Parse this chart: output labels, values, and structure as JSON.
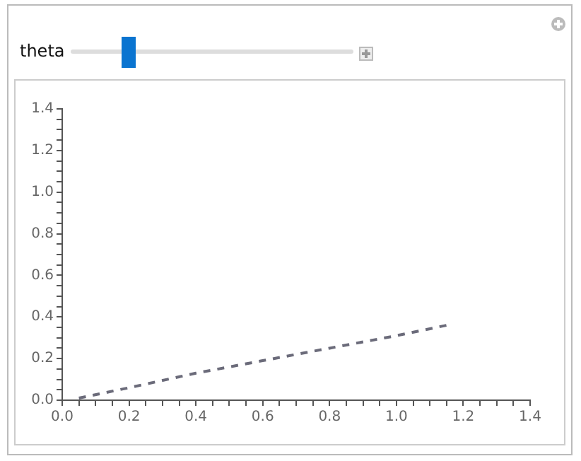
{
  "chart_data": {
    "type": "line",
    "annotations": [
      "theta"
    ],
    "x": [
      0.05,
      0.2,
      0.4,
      0.6,
      0.8,
      1.0,
      1.15
    ],
    "series": [
      {
        "color": "#6b6b7a",
        "values": [
          0.01,
          0.06,
          0.13,
          0.19,
          0.25,
          0.31,
          0.36
        ]
      }
    ],
    "xlim": [
      0,
      1.4
    ],
    "ylim": [
      0,
      1.4
    ],
    "xticks": [
      {
        "value": 0,
        "label": "0.0"
      },
      {
        "value": 0.05,
        "label": null
      },
      {
        "value": 0.1,
        "label": null
      },
      {
        "value": 0.15,
        "label": null
      },
      {
        "value": 0.2,
        "label": "0.2"
      },
      {
        "value": 0.25,
        "label": null
      },
      {
        "value": 0.3,
        "label": null
      },
      {
        "value": 0.35,
        "label": null
      },
      {
        "value": 0.4,
        "label": "0.4"
      },
      {
        "value": 0.45,
        "label": null
      },
      {
        "value": 0.5,
        "label": null
      },
      {
        "value": 0.55,
        "label": null
      },
      {
        "value": 0.6,
        "label": "0.6"
      },
      {
        "value": 0.65,
        "label": null
      },
      {
        "value": 0.7,
        "label": null
      },
      {
        "value": 0.75,
        "label": null
      },
      {
        "value": 0.8,
        "label": "0.8"
      },
      {
        "value": 0.85,
        "label": null
      },
      {
        "value": 0.9,
        "label": null
      },
      {
        "value": 0.95,
        "label": null
      },
      {
        "value": 1.0,
        "label": "1.0"
      },
      {
        "value": 1.05,
        "label": null
      },
      {
        "value": 1.1,
        "label": null
      },
      {
        "value": 1.15,
        "label": null
      },
      {
        "value": 1.2,
        "label": "1.2"
      },
      {
        "value": 1.25,
        "label": null
      },
      {
        "value": 1.3,
        "label": null
      },
      {
        "value": 1.35,
        "label": null
      },
      {
        "value": 1.4,
        "label": "1.4"
      }
    ],
    "yticks": [
      {
        "value": 0,
        "label": "0.0"
      },
      {
        "value": 0.05,
        "label": null
      },
      {
        "value": 0.1,
        "label": null
      },
      {
        "value": 0.15,
        "label": null
      },
      {
        "value": 0.2,
        "label": "0.2"
      },
      {
        "value": 0.25,
        "label": null
      },
      {
        "value": 0.3,
        "label": null
      },
      {
        "value": 0.35,
        "label": null
      },
      {
        "value": 0.4,
        "label": "0.4"
      },
      {
        "value": 0.45,
        "label": null
      },
      {
        "value": 0.5,
        "label": null
      },
      {
        "value": 0.55,
        "label": null
      },
      {
        "value": 0.6,
        "label": "0.6"
      },
      {
        "value": 0.65,
        "label": null
      },
      {
        "value": 0.7,
        "label": null
      },
      {
        "value": 0.75,
        "label": null
      },
      {
        "value": 0.8,
        "label": "0.8"
      },
      {
        "value": 0.85,
        "label": null
      },
      {
        "value": 0.9,
        "label": null
      },
      {
        "value": 0.95,
        "label": null
      },
      {
        "value": 1.0,
        "label": "1.0"
      },
      {
        "value": 1.05,
        "label": null
      },
      {
        "value": 1.1,
        "label": null
      },
      {
        "value": 1.15,
        "label": null
      },
      {
        "value": 1.2,
        "label": "1.2"
      },
      {
        "value": 1.25,
        "label": null
      },
      {
        "value": 1.3,
        "label": null
      },
      {
        "value": 1.35,
        "label": null
      },
      {
        "value": 1.4,
        "label": "1.4"
      }
    ],
    "grid": false,
    "legend": false,
    "marker": "none",
    "line_style": "dashed"
  }
}
